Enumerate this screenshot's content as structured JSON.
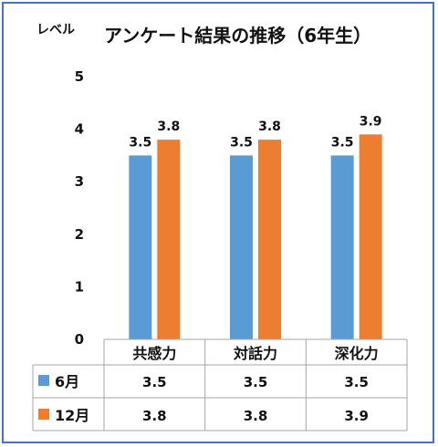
{
  "chart_data": {
    "type": "bar",
    "title": "アンケート結果の推移（6年生）",
    "ylabel": "レベル",
    "xlabel": "",
    "categories": [
      "共感力",
      "対話力",
      "深化力"
    ],
    "series": [
      {
        "name": "6月",
        "values": [
          3.5,
          3.5,
          3.5
        ],
        "color": "#5b9bd5"
      },
      {
        "name": "12月",
        "values": [
          3.8,
          3.8,
          3.9
        ],
        "color": "#ed7d31"
      }
    ],
    "ylim": [
      0,
      5
    ],
    "yticks": [
      0,
      1,
      2,
      3,
      4,
      5
    ],
    "grid": false,
    "legend": "data-table-below",
    "data_table": {
      "rows": [
        {
          "label": "6月",
          "values": [
            "3.5",
            "3.5",
            "3.5"
          ]
        },
        {
          "label": "12月",
          "values": [
            "3.8",
            "3.8",
            "3.9"
          ]
        }
      ]
    },
    "data_labels": [
      [
        "3.5",
        "3.5",
        "3.5"
      ],
      [
        "3.8",
        "3.8",
        "3.9"
      ]
    ]
  },
  "colors": {
    "frame": "#4472c4",
    "axis": "#a6a6a6"
  }
}
